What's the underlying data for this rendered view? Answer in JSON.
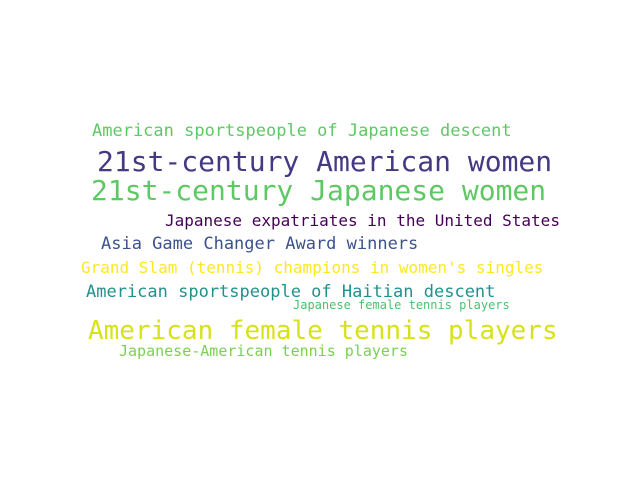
{
  "words": [
    {
      "text": "American sportspeople of Japanese descent",
      "color": "#5ec962"
    },
    {
      "text": "21st-century American women",
      "color": "#443983"
    },
    {
      "text": "21st-century Japanese women",
      "color": "#5ec962"
    },
    {
      "text": "Japanese expatriates in the United States",
      "color": "#440154"
    },
    {
      "text": "Asia Game Changer Award winners",
      "color": "#3b528b"
    },
    {
      "text": "Grand Slam (tennis) champions in women's singles",
      "color": "#fde725"
    },
    {
      "text": "American sportspeople of Haitian descent",
      "color": "#21918c"
    },
    {
      "text": "Japanese female tennis players",
      "color": "#4ac16d"
    },
    {
      "text": "American female tennis players",
      "color": "#d8e219"
    },
    {
      "text": "Japanese-American tennis players",
      "color": "#7ad151"
    }
  ]
}
